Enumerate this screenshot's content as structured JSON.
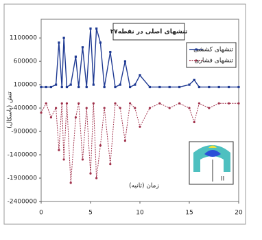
{
  "chart_data": {
    "type": "line",
    "title": "تنشهای اصلی در نقطه۲۷",
    "y_label": "تنش (پاسکال)",
    "x_label": "زمان (ثانیه)",
    "inset_label": "II",
    "x": [
      0,
      0.5,
      1,
      1.5,
      1.8,
      2.1,
      2.3,
      2.6,
      3,
      3.5,
      3.8,
      4.2,
      4.6,
      5,
      5.3,
      5.6,
      6,
      6.4,
      7,
      7.5,
      8,
      8.5,
      9,
      9.5,
      10,
      11,
      12,
      13,
      14,
      15,
      15.5,
      16,
      17,
      18,
      19,
      20
    ],
    "series": [
      {
        "name": "تنشهای کششی",
        "color": "#1f3a93",
        "marker": "square",
        "values": [
          50000,
          50000,
          50000,
          100000,
          1000000,
          50000,
          1100000,
          50000,
          100000,
          700000,
          50000,
          900000,
          50000,
          1300000,
          100000,
          1300000,
          1000000,
          50000,
          800000,
          50000,
          100000,
          600000,
          50000,
          100000,
          300000,
          50000,
          50000,
          50000,
          50000,
          100000,
          200000,
          50000,
          50000,
          50000,
          50000,
          50000
        ]
      },
      {
        "name": "تنشهای فشاری",
        "color": "#a0304a",
        "marker": "circle",
        "values": [
          -500000,
          -300000,
          -600000,
          -400000,
          -1300000,
          -300000,
          -1500000,
          -300000,
          -2000000,
          -600000,
          -300000,
          -1500000,
          -400000,
          -1800000,
          -300000,
          -1900000,
          -1200000,
          -400000,
          -1600000,
          -300000,
          -400000,
          -1100000,
          -300000,
          -400000,
          -800000,
          -400000,
          -300000,
          -400000,
          -300000,
          -400000,
          -700000,
          -300000,
          -400000,
          -300000,
          -300000,
          -300000
        ]
      }
    ],
    "xlim": [
      0,
      20
    ],
    "xticks": [
      0,
      5,
      10,
      15,
      20
    ],
    "ylim": [
      -2400000,
      1500000
    ],
    "yticks": [
      1100000,
      600000,
      100000,
      -400000,
      -900000,
      -1400000,
      -1900000,
      -2400000
    ],
    "grid": false,
    "legend": "upper right"
  }
}
